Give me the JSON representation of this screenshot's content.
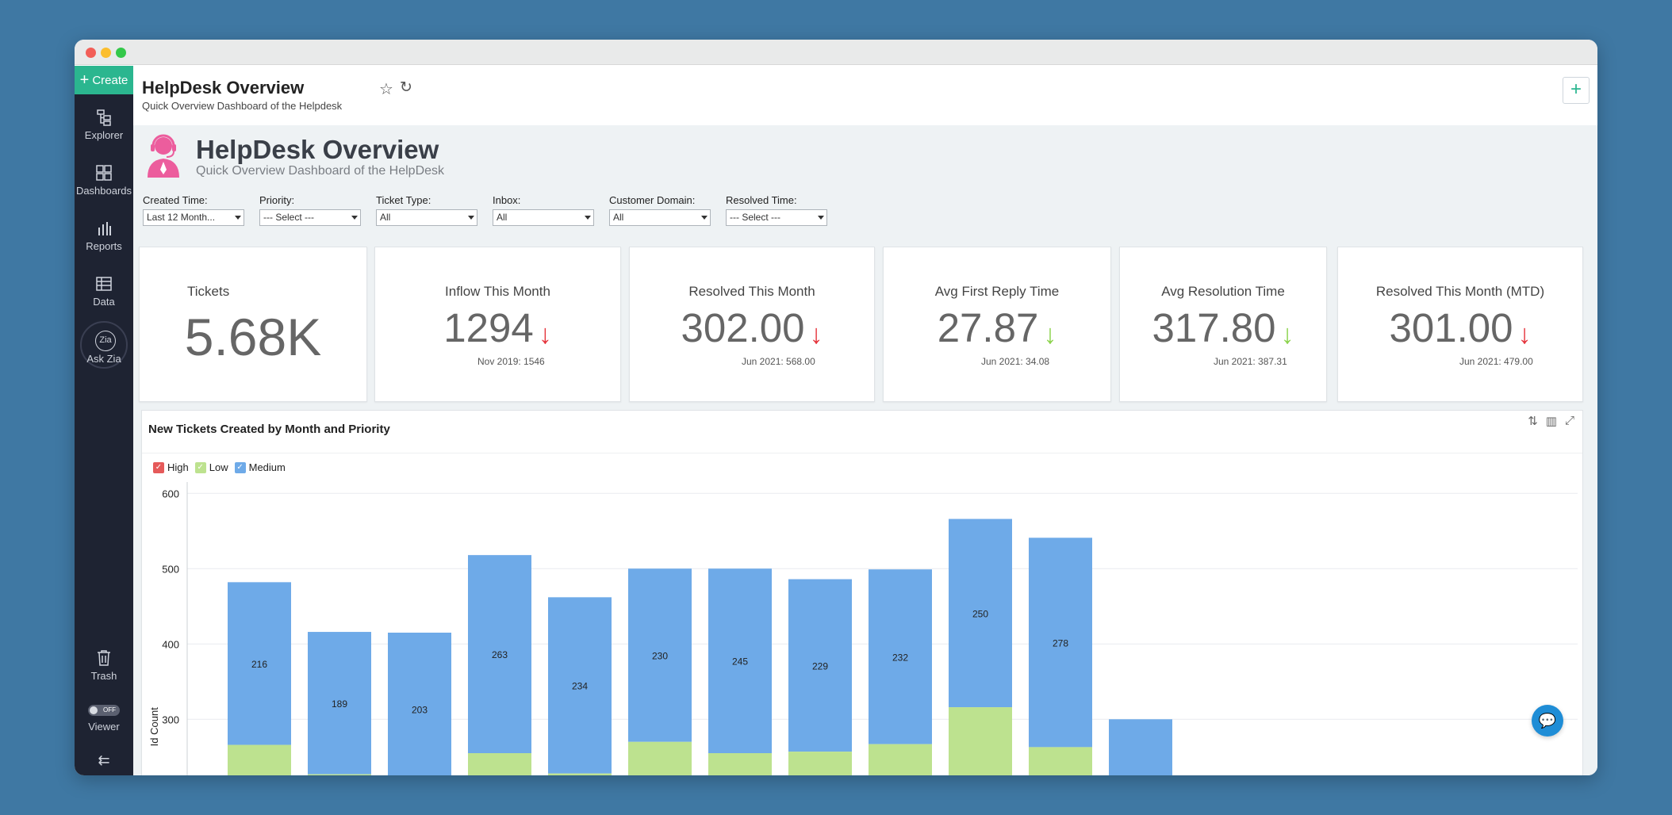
{
  "sidebar": {
    "create_label": "Create",
    "items": [
      {
        "label": "Explorer",
        "icon": "explorer-icon"
      },
      {
        "label": "Dashboards",
        "icon": "dashboards-icon"
      },
      {
        "label": "Reports",
        "icon": "reports-icon"
      },
      {
        "label": "Data",
        "icon": "data-icon"
      },
      {
        "label": "Ask Zia",
        "icon": "zia-icon"
      }
    ],
    "trash_label": "Trash",
    "viewer_label": "Viewer",
    "viewer_toggle": "OFF"
  },
  "header": {
    "title": "HelpDesk Overview",
    "subtitle": "Quick Overview Dashboard of the Helpdesk"
  },
  "dashboard": {
    "title": "HelpDesk Overview",
    "subtitle": "Quick Overview Dashboard of the HelpDesk"
  },
  "filters": [
    {
      "label": "Created Time:",
      "value": "Last 12 Month..."
    },
    {
      "label": "Priority:",
      "value": "--- Select ---"
    },
    {
      "label": "Ticket Type:",
      "value": "All"
    },
    {
      "label": "Inbox:",
      "value": "All"
    },
    {
      "label": "Customer Domain:",
      "value": "All"
    },
    {
      "label": "Resolved Time:",
      "value": "--- Select ---"
    }
  ],
  "kpis": [
    {
      "title": "Tickets",
      "value": "5.68K",
      "arrow": "",
      "compare": ""
    },
    {
      "title": "Inflow This Month",
      "value": "1294",
      "arrow": "↓",
      "compare": "Nov 2019: 1546"
    },
    {
      "title": "Resolved This Month",
      "value": "302.00",
      "arrow": "↓",
      "compare": "Jun 2021: 568.00"
    },
    {
      "title": "Avg First Reply Time",
      "value": "27.87",
      "arrow": "↓",
      "compare": "Jun 2021: 34.08"
    },
    {
      "title": "Avg Resolution Time",
      "value": "317.80",
      "arrow": "↓",
      "compare": "Jun 2021: 387.31"
    },
    {
      "title": "Resolved This Month (MTD)",
      "value": "301.00",
      "arrow": "↓",
      "compare": "Jun 2021: 479.00"
    }
  ],
  "colors": {
    "high": "#e55a5a",
    "low": "#bde28f",
    "medium": "#6eaae8",
    "arrow_red": "#e5353d",
    "arrow_green": "#8cd34d",
    "accent": "#2bb68f"
  },
  "chart_data": {
    "type": "bar",
    "stacked": true,
    "title": "New Tickets Created by Month and Priority",
    "ylabel": "Id Count",
    "xlabel": "",
    "y_ticks": [
      300,
      400,
      500,
      600
    ],
    "ylim_visible": [
      215,
      615
    ],
    "legend": [
      "High",
      "Low",
      "Medium"
    ],
    "legend_position": "top-left",
    "grid": true,
    "series": [
      {
        "name": "Low",
        "values": [
          266,
          227,
          212,
          255,
          228,
          270,
          255,
          257,
          267,
          316,
          263,
          210
        ]
      },
      {
        "name": "Medium",
        "values": [
          216,
          189,
          203,
          263,
          234,
          230,
          245,
          229,
          232,
          250,
          278,
          90
        ]
      }
    ],
    "data_labels": [
      "216",
      "189",
      "203",
      "263",
      "234",
      "230",
      "245",
      "229",
      "232",
      "250",
      "278",
      ""
    ]
  }
}
